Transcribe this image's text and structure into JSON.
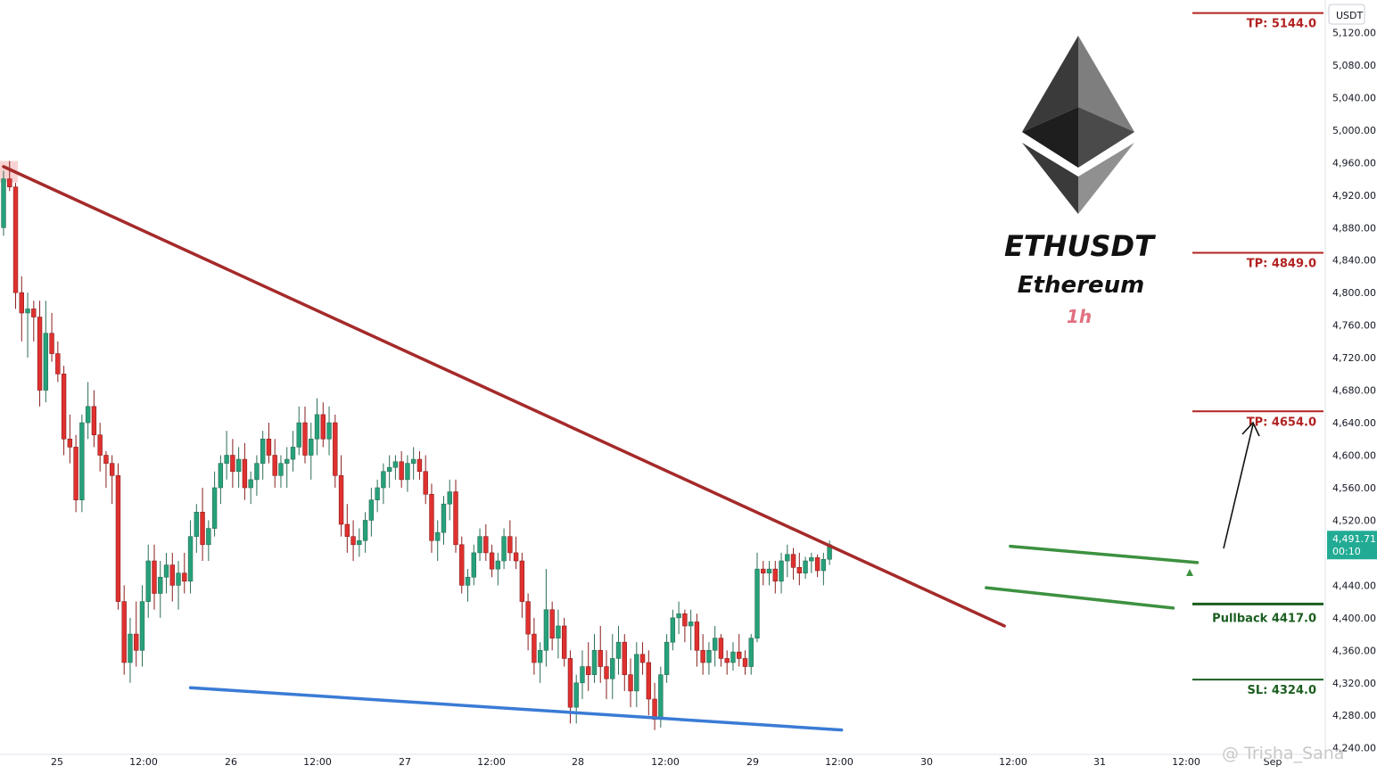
{
  "chart_data": {
    "type": "candlestick",
    "symbol": "ETHUSDT",
    "name": "Ethereum",
    "timeframe": "1h",
    "currency": "USDT",
    "ylim": [
      4232,
      5160
    ],
    "y_ticks": [
      "5,120.00",
      "5,080.00",
      "5,040.00",
      "5,000.00",
      "4,960.00",
      "4,920.00",
      "4,880.00",
      "4,840.00",
      "4,800.00",
      "4,760.00",
      "4,720.00",
      "4,680.00",
      "4,640.00",
      "4,600.00",
      "4,560.00",
      "4,520.00",
      "4,480.00",
      "4,440.00",
      "4,400.00",
      "4,360.00",
      "4,320.00",
      "4,280.00",
      "4,240.00"
    ],
    "x_ticks": [
      "25",
      "12:00",
      "26",
      "12:00",
      "27",
      "12:00",
      "28",
      "12:00",
      "29",
      "12:00",
      "30",
      "12:00",
      "31",
      "12:00",
      "Sep"
    ],
    "last_price": "4,491.71",
    "countdown": "00:10",
    "levels": [
      {
        "label": "TP: 5144.0",
        "price": 5144.0,
        "color": "#b22222"
      },
      {
        "label": "TP: 4849.0",
        "price": 4849.0,
        "color": "#b22222"
      },
      {
        "label": "TP: 4654.0",
        "price": 4654.0,
        "color": "#b22222"
      },
      {
        "label": "Pullback 4417.0",
        "price": 4417.0,
        "color": "#1b5e20"
      },
      {
        "label": "SL: 4324.0",
        "price": 4324.0,
        "color": "#1b5e20"
      }
    ],
    "trendlines": [
      {
        "name": "resistance",
        "color": "#a52a2a",
        "from": {
          "bar": 0,
          "price": 4955
        },
        "to": {
          "bar": 166,
          "price": 4390
        }
      },
      {
        "name": "support",
        "color": "#3a7bd5",
        "from": {
          "bar": 31,
          "price": 4314
        },
        "to": {
          "bar": 139,
          "price": 4262
        }
      },
      {
        "name": "flag-top",
        "color": "#3d9140",
        "from": {
          "bar": 167,
          "price": 4488
        },
        "to": {
          "bar": 198,
          "price": 4468
        }
      },
      {
        "name": "flag-bottom",
        "color": "#3d9140",
        "from": {
          "bar": 163,
          "price": 4437
        },
        "to": {
          "bar": 194,
          "price": 4412
        }
      }
    ],
    "candles": [
      [
        4880,
        4950,
        4870,
        4940
      ],
      [
        4940,
        4962,
        4925,
        4930
      ],
      [
        4930,
        4935,
        4780,
        4800
      ],
      [
        4800,
        4820,
        4740,
        4775
      ],
      [
        4775,
        4800,
        4720,
        4780
      ],
      [
        4780,
        4790,
        4740,
        4770
      ],
      [
        4770,
        4790,
        4660,
        4680
      ],
      [
        4680,
        4790,
        4665,
        4750
      ],
      [
        4750,
        4775,
        4715,
        4725
      ],
      [
        4725,
        4740,
        4690,
        4700
      ],
      [
        4700,
        4710,
        4600,
        4620
      ],
      [
        4620,
        4650,
        4590,
        4610
      ],
      [
        4610,
        4625,
        4530,
        4545
      ],
      [
        4545,
        4650,
        4530,
        4640
      ],
      [
        4640,
        4690,
        4620,
        4660
      ],
      [
        4660,
        4680,
        4610,
        4625
      ],
      [
        4625,
        4640,
        4580,
        4600
      ],
      [
        4600,
        4605,
        4560,
        4590
      ],
      [
        4590,
        4600,
        4540,
        4575
      ],
      [
        4575,
        4590,
        4410,
        4420
      ],
      [
        4420,
        4440,
        4330,
        4345
      ],
      [
        4345,
        4400,
        4320,
        4380
      ],
      [
        4380,
        4420,
        4340,
        4360
      ],
      [
        4360,
        4440,
        4340,
        4420
      ],
      [
        4420,
        4490,
        4400,
        4470
      ],
      [
        4470,
        4490,
        4410,
        4430
      ],
      [
        4430,
        4470,
        4400,
        4450
      ],
      [
        4450,
        4480,
        4430,
        4465
      ],
      [
        4465,
        4480,
        4420,
        4440
      ],
      [
        4440,
        4470,
        4410,
        4455
      ],
      [
        4455,
        4480,
        4430,
        4445
      ],
      [
        4445,
        4520,
        4430,
        4500
      ],
      [
        4500,
        4540,
        4480,
        4530
      ],
      [
        4530,
        4560,
        4470,
        4490
      ],
      [
        4490,
        4520,
        4470,
        4510
      ],
      [
        4510,
        4580,
        4500,
        4560
      ],
      [
        4560,
        4600,
        4540,
        4590
      ],
      [
        4590,
        4630,
        4570,
        4600
      ],
      [
        4600,
        4620,
        4560,
        4580
      ],
      [
        4580,
        4610,
        4560,
        4595
      ],
      [
        4595,
        4615,
        4545,
        4560
      ],
      [
        4560,
        4580,
        4540,
        4570
      ],
      [
        4570,
        4600,
        4550,
        4590
      ],
      [
        4590,
        4630,
        4570,
        4620
      ],
      [
        4620,
        4640,
        4590,
        4600
      ],
      [
        4600,
        4620,
        4560,
        4575
      ],
      [
        4575,
        4600,
        4560,
        4590
      ],
      [
        4590,
        4610,
        4560,
        4595
      ],
      [
        4595,
        4630,
        4580,
        4610
      ],
      [
        4610,
        4660,
        4600,
        4640
      ],
      [
        4640,
        4660,
        4590,
        4600
      ],
      [
        4600,
        4640,
        4570,
        4620
      ],
      [
        4620,
        4670,
        4600,
        4650
      ],
      [
        4650,
        4665,
        4610,
        4620
      ],
      [
        4620,
        4660,
        4600,
        4640
      ],
      [
        4640,
        4650,
        4560,
        4575
      ],
      [
        4575,
        4600,
        4500,
        4515
      ],
      [
        4515,
        4540,
        4480,
        4500
      ],
      [
        4500,
        4520,
        4470,
        4490
      ],
      [
        4490,
        4510,
        4475,
        4495
      ],
      [
        4495,
        4530,
        4480,
        4520
      ],
      [
        4520,
        4560,
        4500,
        4545
      ],
      [
        4545,
        4570,
        4530,
        4560
      ],
      [
        4560,
        4590,
        4540,
        4580
      ],
      [
        4580,
        4600,
        4560,
        4585
      ],
      [
        4585,
        4600,
        4570,
        4592
      ],
      [
        4592,
        4605,
        4560,
        4570
      ],
      [
        4570,
        4600,
        4555,
        4590
      ],
      [
        4590,
        4610,
        4570,
        4595
      ],
      [
        4595,
        4605,
        4570,
        4580
      ],
      [
        4580,
        4600,
        4540,
        4552
      ],
      [
        4552,
        4565,
        4480,
        4495
      ],
      [
        4495,
        4520,
        4470,
        4505
      ],
      [
        4505,
        4550,
        4490,
        4540
      ],
      [
        4540,
        4570,
        4520,
        4555
      ],
      [
        4555,
        4570,
        4480,
        4490
      ],
      [
        4490,
        4500,
        4430,
        4440
      ],
      [
        4440,
        4460,
        4420,
        4450
      ],
      [
        4450,
        4490,
        4440,
        4480
      ],
      [
        4480,
        4510,
        4470,
        4500
      ],
      [
        4500,
        4515,
        4470,
        4480
      ],
      [
        4480,
        4490,
        4450,
        4460
      ],
      [
        4460,
        4480,
        4440,
        4470
      ],
      [
        4470,
        4510,
        4460,
        4500
      ],
      [
        4500,
        4520,
        4470,
        4480
      ],
      [
        4480,
        4500,
        4460,
        4470
      ],
      [
        4470,
        4480,
        4400,
        4420
      ],
      [
        4420,
        4430,
        4360,
        4380
      ],
      [
        4380,
        4400,
        4330,
        4345
      ],
      [
        4345,
        4370,
        4320,
        4360
      ],
      [
        4360,
        4460,
        4340,
        4410
      ],
      [
        4410,
        4420,
        4360,
        4375
      ],
      [
        4375,
        4410,
        4350,
        4390
      ],
      [
        4390,
        4400,
        4340,
        4350
      ],
      [
        4350,
        4360,
        4270,
        4290
      ],
      [
        4290,
        4330,
        4270,
        4320
      ],
      [
        4320,
        4360,
        4300,
        4340
      ],
      [
        4340,
        4370,
        4310,
        4330
      ],
      [
        4330,
        4380,
        4320,
        4360
      ],
      [
        4360,
        4390,
        4320,
        4340
      ],
      [
        4340,
        4360,
        4300,
        4325
      ],
      [
        4325,
        4380,
        4300,
        4350
      ],
      [
        4350,
        4390,
        4330,
        4370
      ],
      [
        4370,
        4380,
        4310,
        4330
      ],
      [
        4330,
        4350,
        4290,
        4310
      ],
      [
        4310,
        4370,
        4290,
        4355
      ],
      [
        4355,
        4370,
        4330,
        4345
      ],
      [
        4345,
        4360,
        4280,
        4300
      ],
      [
        4300,
        4320,
        4262,
        4275
      ],
      [
        4275,
        4340,
        4265,
        4330
      ],
      [
        4330,
        4380,
        4320,
        4370
      ],
      [
        4370,
        4410,
        4360,
        4400
      ],
      [
        4400,
        4420,
        4380,
        4405
      ],
      [
        4405,
        4410,
        4370,
        4390
      ],
      [
        4390,
        4410,
        4360,
        4395
      ],
      [
        4395,
        4405,
        4340,
        4360
      ],
      [
        4360,
        4380,
        4330,
        4345
      ],
      [
        4345,
        4370,
        4330,
        4360
      ],
      [
        4360,
        4390,
        4340,
        4375
      ],
      [
        4375,
        4380,
        4340,
        4350
      ],
      [
        4350,
        4360,
        4330,
        4345
      ],
      [
        4345,
        4370,
        4335,
        4358
      ],
      [
        4358,
        4380,
        4340,
        4350
      ],
      [
        4350,
        4360,
        4330,
        4340
      ],
      [
        4340,
        4380,
        4330,
        4375
      ],
      [
        4375,
        4480,
        4370,
        4460
      ],
      [
        4460,
        4470,
        4440,
        4455
      ],
      [
        4455,
        4470,
        4440,
        4460
      ],
      [
        4460,
        4470,
        4430,
        4445
      ],
      [
        4445,
        4480,
        4430,
        4470
      ],
      [
        4470,
        4490,
        4450,
        4478
      ],
      [
        4478,
        4486,
        4447,
        4462
      ],
      [
        4462,
        4480,
        4440,
        4455
      ],
      [
        4455,
        4475,
        4448,
        4470
      ],
      [
        4470,
        4480,
        4455,
        4474
      ],
      [
        4474,
        4478,
        4450,
        4458
      ],
      [
        4458,
        4480,
        4440,
        4472
      ],
      [
        4472,
        4495,
        4465,
        4490
      ]
    ]
  },
  "watermark": "@ Trisha_Sana"
}
